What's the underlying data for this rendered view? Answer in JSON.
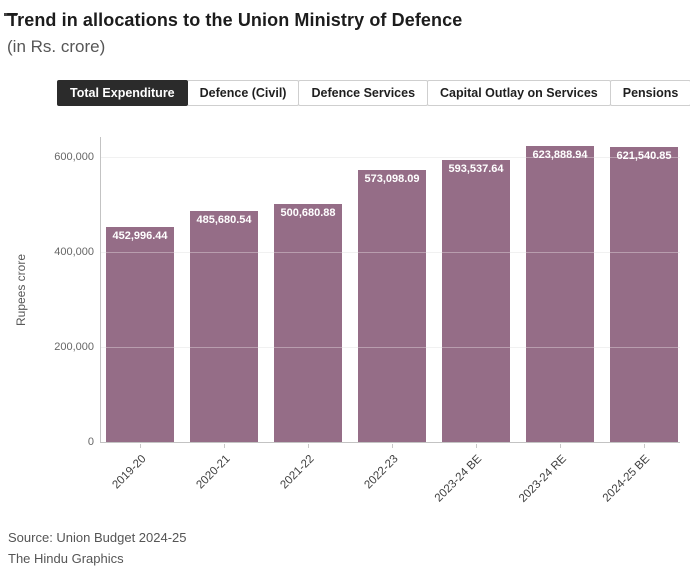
{
  "header": {
    "title": "Trend in allocations to the Union Ministry of Defence",
    "subtitle": "(in Rs. crore)"
  },
  "tabs": [
    {
      "label": "Total Expenditure",
      "selected": true
    },
    {
      "label": "Defence (Civil)",
      "selected": false
    },
    {
      "label": "Defence Services",
      "selected": false
    },
    {
      "label": "Capital Outlay on Services",
      "selected": false
    },
    {
      "label": "Pensions",
      "selected": false
    }
  ],
  "chart_data": {
    "type": "bar",
    "title": "Trend in allocations to the Union Ministry of Defence (in Rs. crore)",
    "categories": [
      "2019-20",
      "2020-21",
      "2021-22",
      "2022-23",
      "2023-24 BE",
      "2023-24 RE",
      "2024-25 BE"
    ],
    "values": [
      452996.44,
      485680.54,
      500680.88,
      573098.09,
      593537.64,
      623888.94,
      621540.85
    ],
    "value_labels": [
      "452,996.44",
      "485,680.54",
      "500,680.88",
      "573,098.09",
      "593,537.64",
      "623,888.94",
      "621,540.85"
    ],
    "xlabel": "",
    "ylabel": "Rupees crore",
    "y_ticks": [
      0,
      200000,
      400000,
      600000
    ],
    "y_tick_labels": [
      "0",
      "200,000",
      "400,000",
      "600,000"
    ],
    "ylim": [
      0,
      644200
    ],
    "grid": true,
    "legend": "none",
    "bar_color": "#956d87",
    "bar_label_color": "#ffffff"
  },
  "footer": {
    "source": "Source: Union Budget 2024-25",
    "credit": "The Hindu Graphics"
  }
}
